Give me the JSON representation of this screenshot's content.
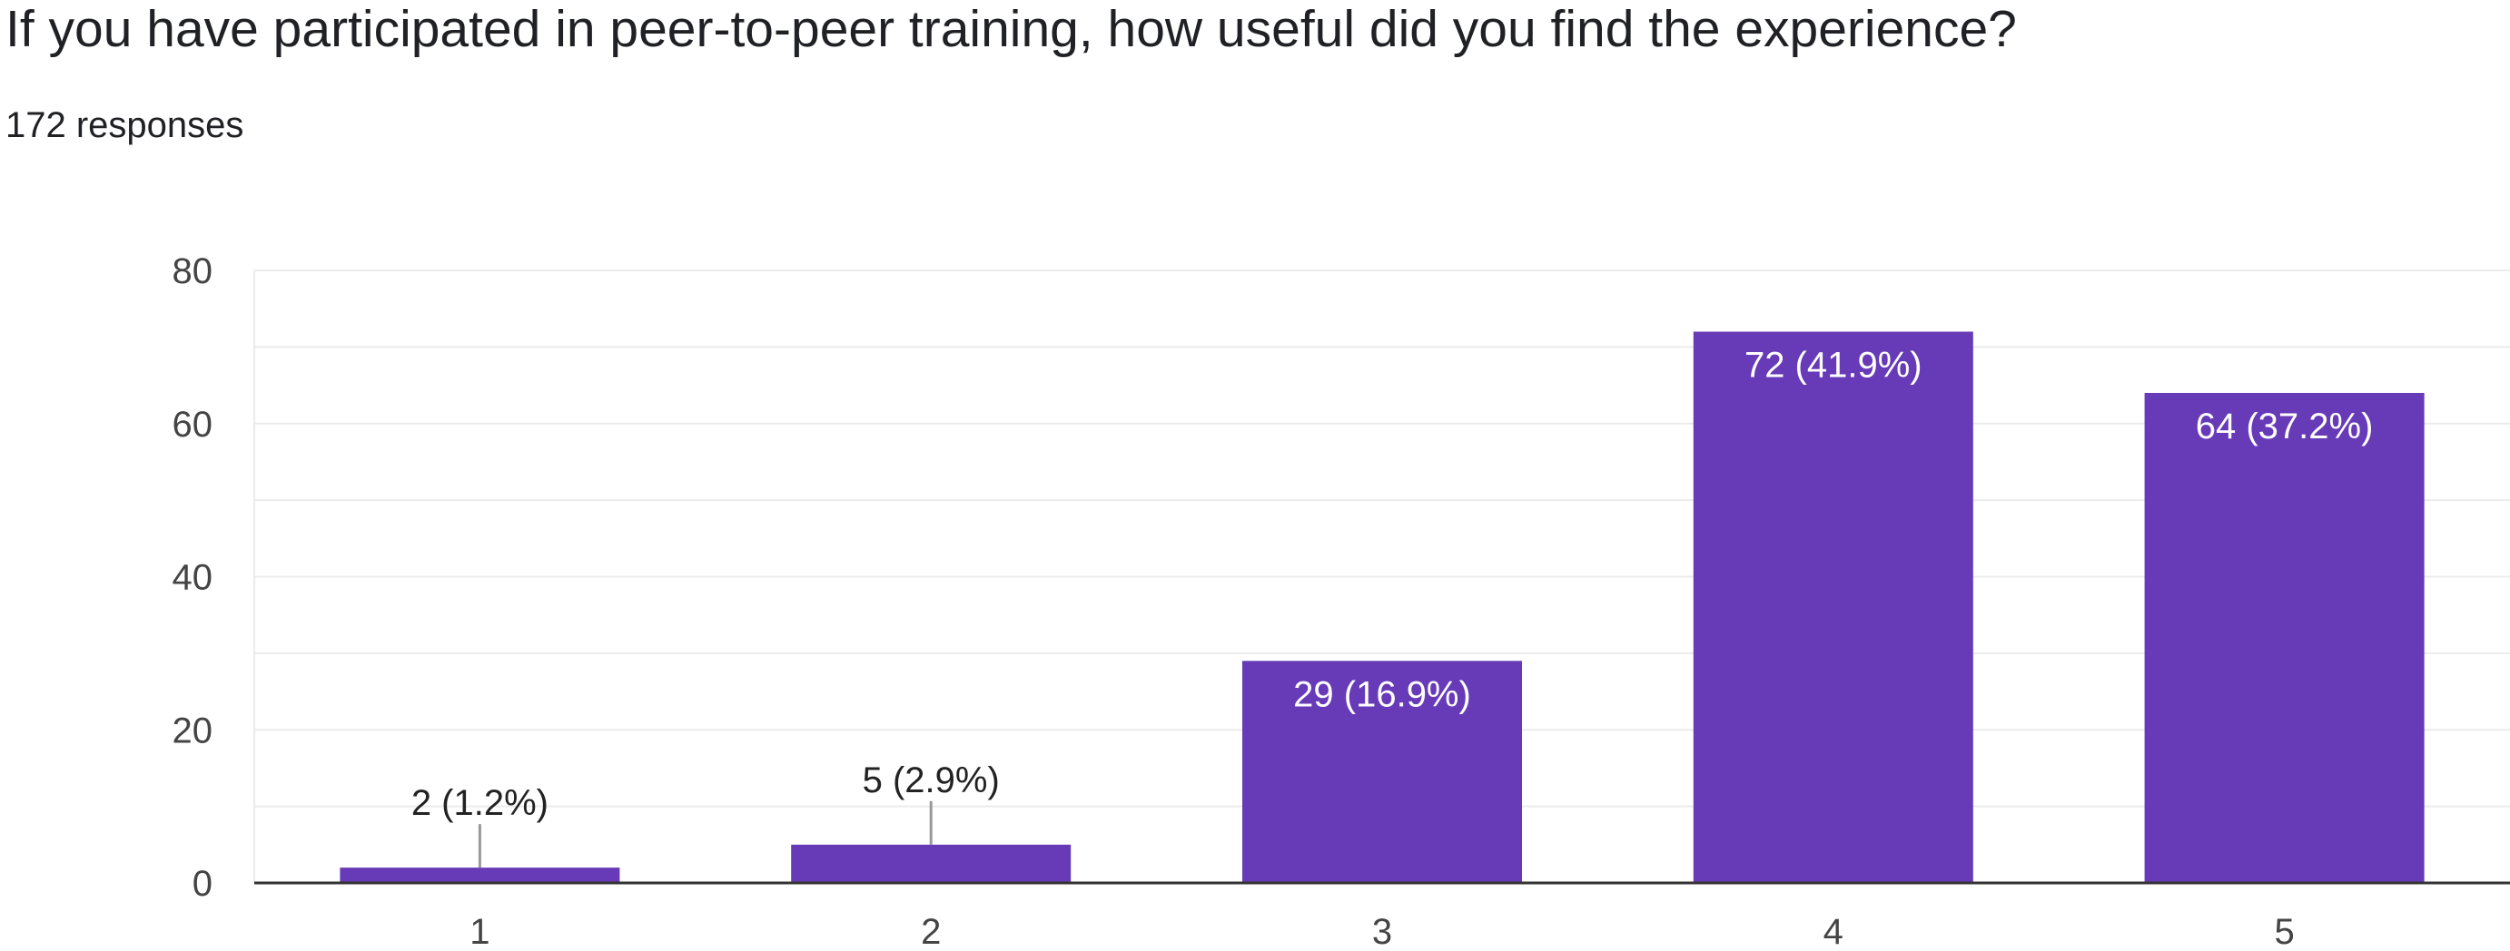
{
  "question": {
    "title": "If you have participated in peer-to-peer training, how useful did you find the experience?",
    "responses": "172 responses"
  },
  "colors": {
    "bar": "#673ab7",
    "gridline": "#ebebeb",
    "baseline": "#333333",
    "tick_text": "#444444",
    "label_inside": "#ffffff",
    "label_outside": "#222222",
    "leader": "#999999"
  },
  "chart_data": {
    "type": "bar",
    "title": "",
    "xlabel": "",
    "ylabel": "",
    "ylim": [
      0,
      80
    ],
    "yticks": [
      0,
      20,
      40,
      60,
      80
    ],
    "grid": true,
    "legend": "none",
    "categories": [
      "1",
      "2",
      "3",
      "4",
      "5"
    ],
    "values": [
      2,
      5,
      29,
      72,
      64
    ],
    "labels": [
      "2 (1.2%)",
      "5 (2.9%)",
      "29 (16.9%)",
      "72 (41.9%)",
      "64 (37.2%)"
    ]
  }
}
